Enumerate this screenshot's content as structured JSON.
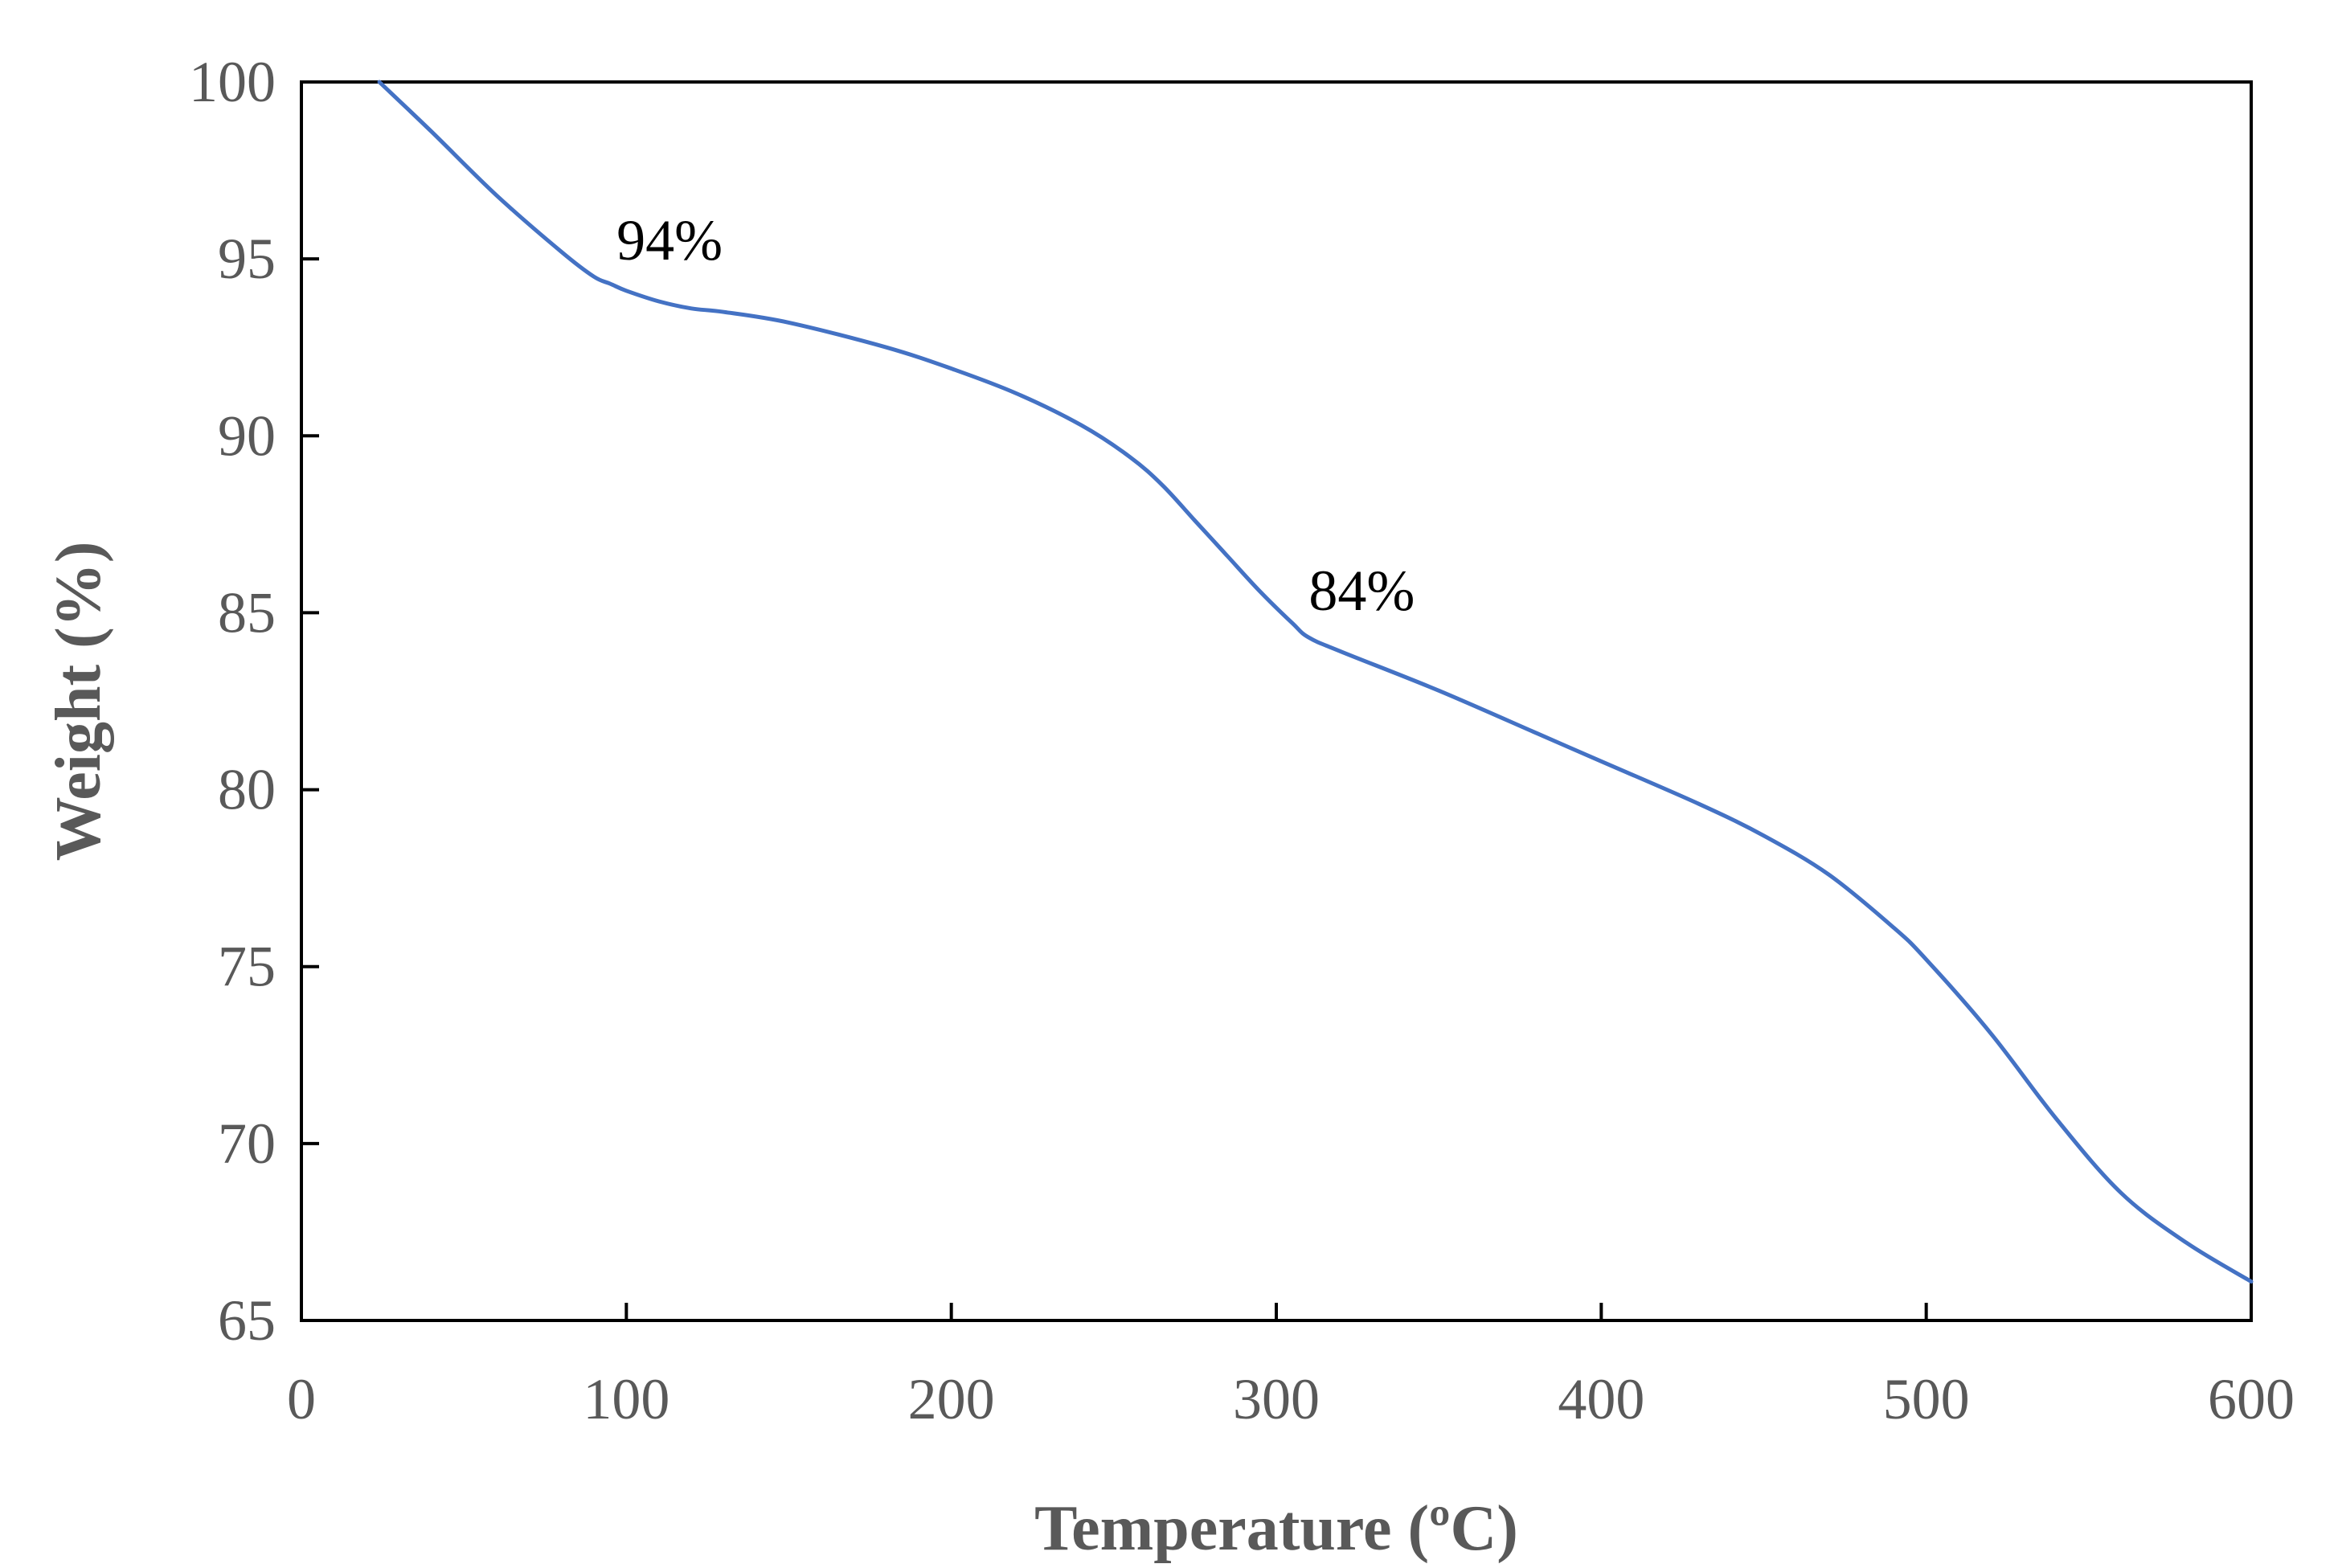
{
  "chart_data": {
    "type": "line",
    "title": "",
    "xlabel": "Temperature (ºC)",
    "ylabel": "Weight (%)",
    "xlim": [
      0,
      600
    ],
    "ylim": [
      65,
      100
    ],
    "xticks": [
      0,
      100,
      200,
      300,
      400,
      500,
      600
    ],
    "yticks": [
      65,
      70,
      75,
      80,
      85,
      90,
      95,
      100
    ],
    "grid": false,
    "legend": "none",
    "colors": {
      "line": "#4472C4",
      "axis": "#000000",
      "tick_text": "#595959",
      "annotation_text": "#000000"
    },
    "series": [
      {
        "name": "Weight",
        "x": [
          24,
          40,
          60,
          80,
          90,
          95,
          100,
          110,
          120,
          130,
          150,
          180,
          200,
          220,
          240,
          255,
          265,
          275,
          285,
          295,
          305,
          310,
          320,
          350,
          380,
          400,
          430,
          450,
          470,
          490,
          500,
          520,
          540,
          560,
          580,
          600
        ],
        "y": [
          100,
          98.6,
          96.8,
          95.2,
          94.5,
          94.3,
          94.1,
          93.8,
          93.6,
          93.5,
          93.2,
          92.5,
          91.9,
          91.2,
          90.3,
          89.4,
          88.6,
          87.6,
          86.6,
          85.6,
          84.7,
          84.3,
          83.9,
          82.8,
          81.6,
          80.8,
          79.6,
          78.7,
          77.6,
          76.1,
          75.2,
          73.1,
          70.7,
          68.6,
          67.2,
          66.1
        ]
      }
    ],
    "annotations": [
      {
        "text": "94%",
        "x": 95,
        "y": 94.3
      },
      {
        "text": "84%",
        "x": 308,
        "y": 84.4
      }
    ]
  }
}
